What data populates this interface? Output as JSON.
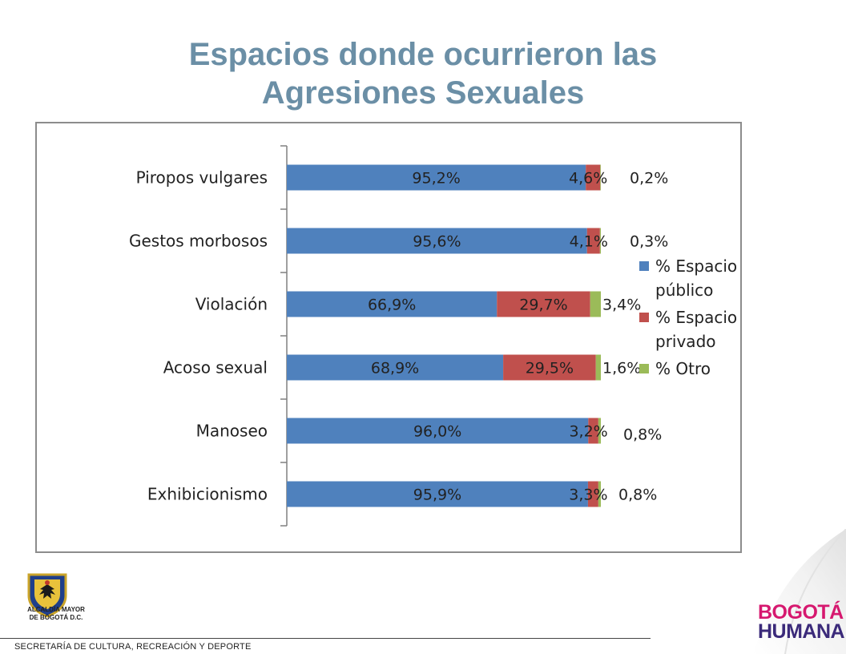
{
  "title": {
    "line1": "Espacios donde ocurrieron las",
    "line2": "Agresiones Sexuales"
  },
  "chart_data": {
    "type": "bar",
    "orientation": "horizontal",
    "stacked": true,
    "categories": [
      "Piropos vulgares",
      "Gestos morbosos",
      "Violación",
      "Acoso sexual",
      "Manoseo",
      "Exhibicionismo"
    ],
    "series": [
      {
        "name": "% Espacio público",
        "color": "#4f81bd",
        "values": [
          95.2,
          95.6,
          66.9,
          68.9,
          96.0,
          95.9
        ],
        "labels": [
          "95,2%",
          "95,6%",
          "66,9%",
          "68,9%",
          "96,0%",
          "95,9%"
        ]
      },
      {
        "name": "% Espacio privado",
        "color": "#c0504d",
        "values": [
          4.6,
          4.1,
          29.7,
          29.5,
          3.2,
          3.3
        ],
        "labels": [
          "4,6%",
          "4,1%",
          "29,7%",
          "29,5%",
          "3,2%",
          "3,3%"
        ]
      },
      {
        "name": "% Otro",
        "color": "#9bbb59",
        "values": [
          0.2,
          0.3,
          3.4,
          1.6,
          0.8,
          0.8
        ],
        "labels": [
          "0,2%",
          "0,3%",
          "3,4%",
          "1,6%",
          "0,8%",
          "0,8%"
        ]
      }
    ],
    "xlim": [
      0,
      100
    ],
    "legend_position": "right",
    "grid": false
  },
  "legend": {
    "items": [
      {
        "lines": [
          "% Espacio",
          "público"
        ]
      },
      {
        "lines": [
          "% Espacio",
          "privado"
        ]
      },
      {
        "lines": [
          "% Otro"
        ]
      }
    ]
  },
  "crest": {
    "line1": "ALCALDÍA MAYOR",
    "line2": "DE BOGOTÁ D.C."
  },
  "footer": {
    "text": "SECRETARÍA DE CULTURA, RECREACIÓN Y DEPORTE"
  },
  "brand": {
    "line1": "BOGOTÁ",
    "line2": "HUMANA"
  }
}
